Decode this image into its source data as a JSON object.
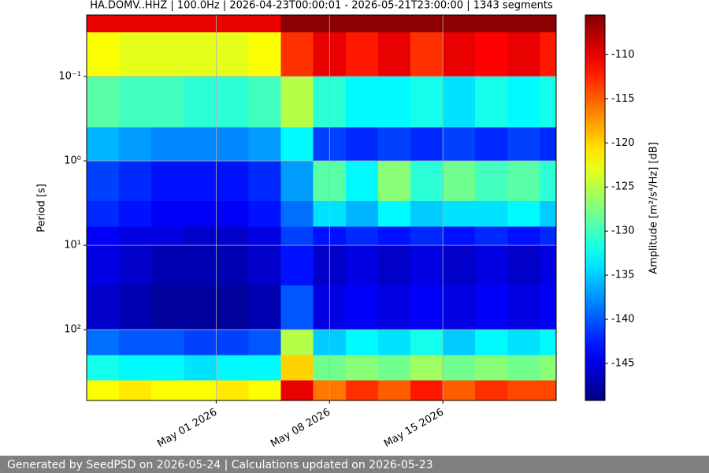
{
  "chart_data": {
    "type": "heatmap",
    "title": "HA.DOMV..HHZ | 100.0Hz | 2026-04-23T00:00:01 - 2026-05-21T23:00:00 | 1343 segments",
    "y_label": "Period [s]",
    "colorbar_label": "Amplitude [m²/s⁴/Hz] [dB]",
    "colormap": "jet",
    "grid": true,
    "yscale": "log",
    "y_inverted": true,
    "xlim": [
      "2026-04-23",
      "2026-05-22"
    ],
    "xticks": [
      {
        "value": "2026-05-01",
        "label": "May 01 2026"
      },
      {
        "value": "2026-05-08",
        "label": "May 08 2026"
      },
      {
        "value": "2026-05-15",
        "label": "May 15 2026"
      }
    ],
    "ylim": [
      0.0187,
      690
    ],
    "yticks": [
      {
        "value": 0.1,
        "label": "10⁻¹"
      },
      {
        "value": 1,
        "label": "10⁰"
      },
      {
        "value": 10,
        "label": "10¹"
      },
      {
        "value": 100,
        "label": "10²"
      }
    ],
    "zlim": [
      -149.2,
      -105.5
    ],
    "zticks": [
      -110,
      -115,
      -120,
      -125,
      -130,
      -135,
      -140,
      -145
    ],
    "x": [
      "2026-04-23",
      "2026-04-25",
      "2026-04-27",
      "2026-04-29",
      "2026-05-01",
      "2026-05-03",
      "2026-05-05",
      "2026-05-07",
      "2026-05-09",
      "2026-05-11",
      "2026-05-13",
      "2026-05-15",
      "2026-05-17",
      "2026-05-19",
      "2026-05-21"
    ],
    "y_edges": [
      0.0187,
      0.03,
      0.1,
      0.4,
      1,
      3,
      6,
      10,
      30,
      100,
      200,
      400,
      690
    ],
    "z": [
      [
        -110,
        -110,
        -110,
        -110,
        -110,
        -110,
        -106,
        -106,
        -106,
        -106,
        -106,
        -106,
        -106,
        -106,
        -106
      ],
      [
        -122,
        -123,
        -123,
        -123,
        -123,
        -122,
        -113,
        -110,
        -112,
        -110,
        -113,
        -110,
        -111,
        -110,
        -112
      ],
      [
        -129,
        -130,
        -130,
        -131,
        -131,
        -130,
        -125,
        -131,
        -133,
        -133,
        -132,
        -134,
        -132,
        -133,
        -132
      ],
      [
        -136,
        -137,
        -138,
        -138,
        -138,
        -137,
        -133,
        -141,
        -142,
        -141,
        -142,
        -141,
        -142,
        -141,
        -142
      ],
      [
        -141,
        -142,
        -143,
        -143,
        -143,
        -142,
        -137,
        -129,
        -133,
        -127,
        -131,
        -128,
        -130,
        -129,
        -131
      ],
      [
        -142,
        -143,
        -144,
        -144,
        -144,
        -143,
        -139,
        -134,
        -136,
        -133,
        -135,
        -134,
        -134,
        -133,
        -135
      ],
      [
        -144,
        -145,
        -145,
        -146,
        -146,
        -145,
        -141,
        -143,
        -142,
        -143,
        -142,
        -143,
        -142,
        -143,
        -142
      ],
      [
        -145,
        -146,
        -147,
        -147,
        -147,
        -146,
        -143,
        -146,
        -145,
        -146,
        -145,
        -146,
        -145,
        -146,
        -145
      ],
      [
        -146,
        -147,
        -148,
        -148,
        -148,
        -147,
        -140,
        -145,
        -144,
        -145,
        -144,
        -145,
        -144,
        -145,
        -144
      ],
      [
        -139,
        -140,
        -140,
        -141,
        -141,
        -140,
        -125,
        -135,
        -133,
        -134,
        -132,
        -135,
        -133,
        -134,
        -133
      ],
      [
        -132,
        -133,
        -133,
        -134,
        -133,
        -133,
        -120,
        -128,
        -127,
        -128,
        -126,
        -128,
        -127,
        -128,
        -127
      ],
      [
        -122,
        -121,
        -122,
        -122,
        -121,
        -122,
        -110,
        -116,
        -113,
        -115,
        -112,
        -115,
        -113,
        -114,
        -114
      ]
    ]
  },
  "footer": "Generated by SeedPSD on 2026-05-24 | Calculations updated on 2026-05-23"
}
